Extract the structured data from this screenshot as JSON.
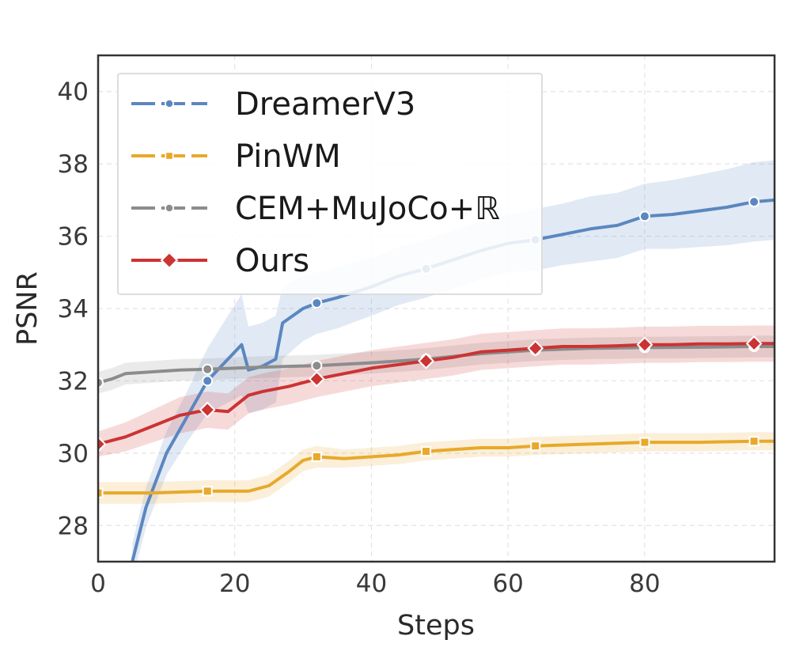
{
  "chart_data": {
    "type": "line",
    "title": "",
    "xlabel": "Steps",
    "ylabel": "PSNR",
    "xlim": [
      0,
      99
    ],
    "ylim": [
      27,
      41
    ],
    "xticks": [
      "0",
      "20",
      "40",
      "60",
      "80"
    ],
    "xtick_values": [
      0,
      20,
      40,
      60,
      80
    ],
    "yticks": [
      "28",
      "30",
      "32",
      "34",
      "36",
      "38",
      "40"
    ],
    "ytick_values": [
      28,
      30,
      32,
      34,
      36,
      38,
      40
    ],
    "grid": true,
    "legend_position": "top-left",
    "marker_every": 16,
    "series": [
      {
        "name": "DreamerV3",
        "color": "#5b87c0",
        "marker": "circle",
        "x": [
          5,
          7,
          10,
          13,
          16,
          19,
          21,
          22,
          24,
          26,
          27,
          30,
          32,
          35,
          40,
          44,
          48,
          52,
          56,
          60,
          64,
          68,
          72,
          76,
          80,
          84,
          88,
          92,
          96,
          99
        ],
        "y": [
          27.0,
          28.5,
          30.0,
          31.0,
          32.0,
          32.6,
          33.0,
          32.3,
          32.4,
          32.6,
          33.6,
          34.0,
          34.15,
          34.3,
          34.6,
          34.9,
          35.1,
          35.35,
          35.6,
          35.8,
          35.9,
          36.05,
          36.2,
          36.3,
          36.55,
          36.6,
          36.7,
          36.8,
          36.95,
          37.0
        ],
        "band": [
          0.5,
          0.55,
          0.6,
          0.7,
          0.9,
          1.2,
          1.4,
          1.2,
          1.2,
          1.2,
          1.0,
          0.9,
          0.85,
          0.85,
          0.8,
          0.8,
          0.8,
          0.8,
          0.8,
          0.8,
          0.85,
          0.85,
          0.9,
          0.9,
          0.9,
          0.95,
          1.0,
          1.05,
          1.1,
          1.1
        ]
      },
      {
        "name": "PinWM",
        "color": "#e8a92a",
        "marker": "square",
        "x": [
          0,
          8,
          16,
          22,
          25,
          28,
          30,
          32,
          36,
          40,
          44,
          48,
          52,
          56,
          60,
          64,
          72,
          80,
          88,
          96,
          99
        ],
        "y": [
          28.9,
          28.9,
          28.95,
          28.95,
          29.1,
          29.5,
          29.8,
          29.9,
          29.85,
          29.9,
          29.95,
          30.05,
          30.1,
          30.15,
          30.15,
          30.2,
          30.25,
          30.3,
          30.3,
          30.33,
          30.33
        ],
        "band": [
          0.3,
          0.3,
          0.3,
          0.3,
          0.3,
          0.3,
          0.3,
          0.3,
          0.25,
          0.25,
          0.25,
          0.25,
          0.25,
          0.25,
          0.25,
          0.25,
          0.25,
          0.25,
          0.25,
          0.25,
          0.25
        ]
      },
      {
        "name": "CEM+MuJoCo+ℝ",
        "color": "#8c8c8c",
        "marker": "circle",
        "x": [
          0,
          2,
          4,
          8,
          12,
          16,
          20,
          24,
          28,
          32,
          40,
          48,
          56,
          64,
          72,
          80,
          88,
          96,
          99
        ],
        "y": [
          31.95,
          32.05,
          32.2,
          32.25,
          32.3,
          32.32,
          32.35,
          32.38,
          32.4,
          32.42,
          32.5,
          32.6,
          32.75,
          32.85,
          32.9,
          32.92,
          32.93,
          32.95,
          32.95
        ],
        "band": [
          0.3,
          0.3,
          0.3,
          0.3,
          0.3,
          0.3,
          0.3,
          0.3,
          0.3,
          0.3,
          0.3,
          0.3,
          0.3,
          0.3,
          0.3,
          0.3,
          0.3,
          0.3,
          0.3
        ]
      },
      {
        "name": "Ours",
        "color": "#cc3333",
        "marker": "diamond",
        "x": [
          0,
          4,
          8,
          12,
          16,
          19,
          20,
          22,
          24,
          28,
          32,
          36,
          40,
          44,
          48,
          52,
          56,
          60,
          64,
          68,
          72,
          76,
          80,
          84,
          88,
          92,
          96,
          99
        ],
        "y": [
          30.25,
          30.45,
          30.75,
          31.05,
          31.2,
          31.15,
          31.3,
          31.6,
          31.7,
          31.85,
          32.05,
          32.2,
          32.35,
          32.45,
          32.55,
          32.65,
          32.8,
          32.85,
          32.9,
          32.95,
          32.95,
          32.97,
          33.0,
          33.0,
          33.02,
          33.02,
          33.03,
          33.03
        ],
        "band": [
          0.35,
          0.4,
          0.45,
          0.5,
          0.5,
          0.5,
          0.5,
          0.5,
          0.5,
          0.5,
          0.5,
          0.5,
          0.5,
          0.5,
          0.5,
          0.5,
          0.5,
          0.5,
          0.5,
          0.5,
          0.5,
          0.5,
          0.5,
          0.5,
          0.5,
          0.5,
          0.5,
          0.5
        ]
      }
    ]
  }
}
